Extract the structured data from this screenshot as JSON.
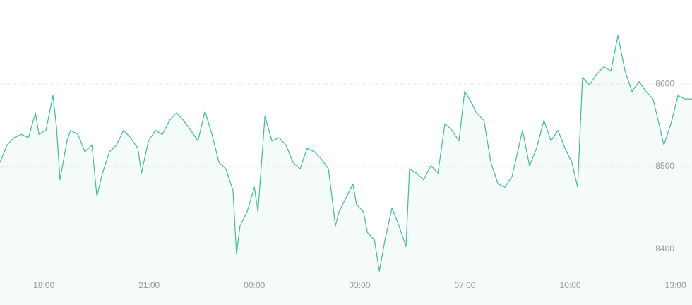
{
  "chart_data": {
    "type": "line",
    "x": [
      -1.25,
      -1.05,
      -0.85,
      -0.64,
      -0.44,
      -0.24,
      -0.14,
      0.06,
      0.26,
      0.36,
      0.46,
      0.66,
      0.76,
      0.97,
      1.17,
      1.37,
      1.51,
      1.67,
      1.87,
      2.07,
      2.27,
      2.47,
      2.68,
      2.78,
      2.98,
      3.18,
      3.38,
      3.58,
      3.78,
      3.98,
      4.19,
      4.39,
      4.59,
      4.79,
      4.99,
      5.19,
      5.39,
      5.49,
      5.59,
      5.79,
      6.0,
      6.1,
      6.3,
      6.5,
      6.7,
      6.9,
      7.1,
      7.3,
      7.5,
      7.71,
      7.91,
      8.11,
      8.31,
      8.41,
      8.61,
      8.81,
      8.91,
      9.11,
      9.22,
      9.42,
      9.56,
      9.72,
      9.92,
      10.12,
      10.32,
      10.42,
      10.62,
      10.82,
      11.03,
      11.23,
      11.43,
      11.63,
      11.83,
      11.99,
      12.13,
      12.33,
      12.54,
      12.74,
      12.94,
      13.14,
      13.34,
      13.64,
      13.84,
      14.04,
      14.25,
      14.45,
      14.65,
      14.85,
      15.05,
      15.21,
      15.35,
      15.55,
      15.75,
      15.96,
      16.16,
      16.36,
      16.56,
      16.76,
      16.96,
      17.16,
      17.36,
      17.57,
      17.67,
      17.87,
      18.07,
      18.27,
      18.47
    ],
    "series": [
      {
        "color": "#3fbf8f",
        "values": [
          8505,
          8526,
          8535,
          8539,
          8535,
          8565,
          8539,
          8544,
          8586,
          8548,
          8484,
          8531,
          8544,
          8539,
          8518,
          8526,
          8464,
          8492,
          8518,
          8526,
          8544,
          8535,
          8522,
          8492,
          8531,
          8544,
          8539,
          8556,
          8565,
          8556,
          8544,
          8531,
          8567,
          8539,
          8505,
          8497,
          8471,
          8394,
          8428,
          8445,
          8475,
          8445,
          8561,
          8531,
          8535,
          8526,
          8505,
          8497,
          8522,
          8518,
          8509,
          8497,
          8428,
          8445,
          8462,
          8479,
          8454,
          8445,
          8420,
          8411,
          8373,
          8411,
          8450,
          8428,
          8403,
          8497,
          8492,
          8484,
          8501,
          8492,
          8552,
          8544,
          8531,
          8591,
          8582,
          8565,
          8556,
          8505,
          8479,
          8475,
          8488,
          8544,
          8501,
          8522,
          8556,
          8531,
          8544,
          8522,
          8505,
          8475,
          8608,
          8599,
          8612,
          8621,
          8616,
          8659,
          8616,
          8591,
          8603,
          8591,
          8582,
          8544,
          8526,
          8552,
          8586,
          8582,
          8582
        ]
      }
    ],
    "xlim": [
      -1.25,
      18.47
    ],
    "xticks": [
      {
        "value": 0,
        "label": "18:00"
      },
      {
        "value": 3,
        "label": "21:00"
      },
      {
        "value": 6,
        "label": "00:00"
      },
      {
        "value": 9,
        "label": "03:00"
      },
      {
        "value": 12,
        "label": "07:00"
      },
      {
        "value": 15,
        "label": "10:00"
      },
      {
        "value": 18,
        "label": "13:00"
      }
    ],
    "ylim": [
      8368,
      8702
    ],
    "yticks": [
      8400,
      8500,
      8600
    ],
    "grid": true
  }
}
